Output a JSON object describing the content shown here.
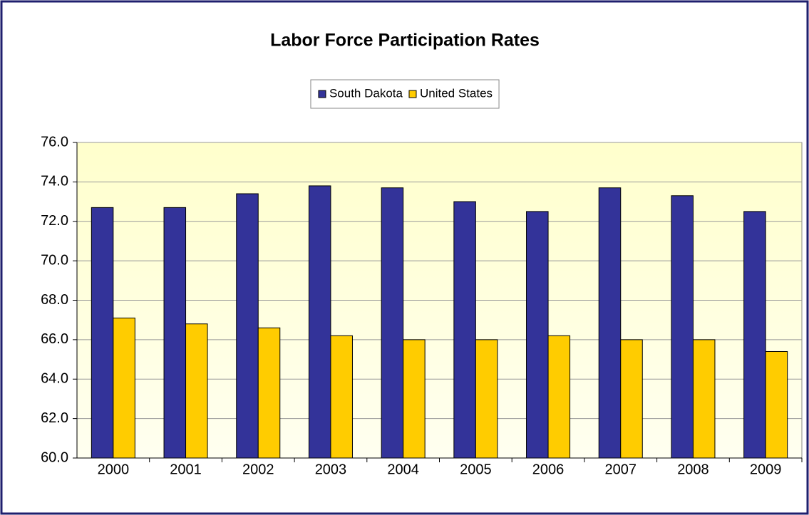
{
  "chart_data": {
    "type": "bar",
    "title": "Labor Force Participation Rates",
    "categories": [
      "2000",
      "2001",
      "2002",
      "2003",
      "2004",
      "2005",
      "2006",
      "2007",
      "2008",
      "2009"
    ],
    "series": [
      {
        "name": "South Dakota",
        "color": "#333399",
        "values": [
          72.7,
          72.7,
          73.4,
          73.8,
          73.7,
          73.0,
          72.5,
          73.7,
          73.3,
          72.5
        ]
      },
      {
        "name": "United States",
        "color": "#ffcc00",
        "values": [
          67.1,
          66.8,
          66.6,
          66.2,
          66.0,
          66.0,
          66.2,
          66.0,
          66.0,
          65.4
        ]
      }
    ],
    "ylim": [
      60,
      76
    ],
    "yticks": [
      {
        "value": 60,
        "label": "60.0"
      },
      {
        "value": 62,
        "label": "62.0"
      },
      {
        "value": 64,
        "label": "64.0"
      },
      {
        "value": 66,
        "label": "66.0"
      },
      {
        "value": 68,
        "label": "68.0"
      },
      {
        "value": 70,
        "label": "70.0"
      },
      {
        "value": 72,
        "label": "72.0"
      },
      {
        "value": 74,
        "label": "74.0"
      },
      {
        "value": 76,
        "label": "76.0"
      }
    ],
    "grid": true,
    "legend": "top"
  }
}
